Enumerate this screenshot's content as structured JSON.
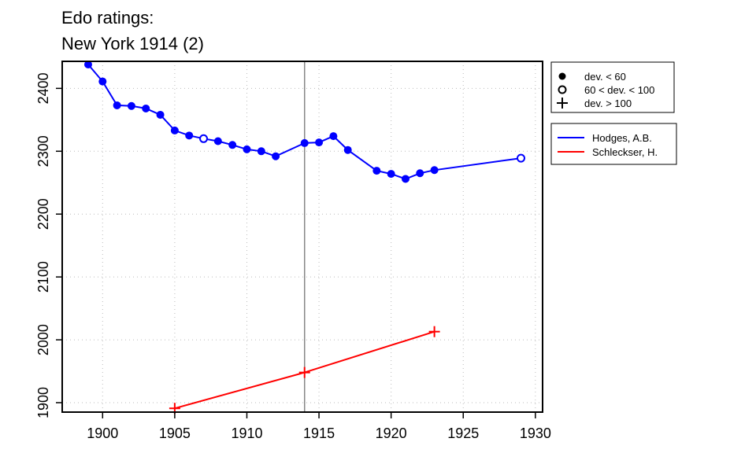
{
  "chart_data": {
    "type": "line",
    "title_lines": [
      "Edo ratings:",
      "New York 1914 (2)"
    ],
    "xlabel": "",
    "ylabel": "",
    "xlim": [
      1897.2,
      1930.5
    ],
    "ylim": [
      1885,
      2443
    ],
    "x_ticks": [
      1900,
      1905,
      1910,
      1915,
      1920,
      1925,
      1930
    ],
    "y_ticks": [
      1900,
      2000,
      2100,
      2200,
      2300,
      2400
    ],
    "grid": true,
    "event_year": 1914,
    "marker_legend": [
      {
        "marker": "filled-circle",
        "label": "dev. < 60"
      },
      {
        "marker": "open-circle",
        "label": "60 < dev. < 100"
      },
      {
        "marker": "plus",
        "label": "dev. > 100"
      }
    ],
    "series": [
      {
        "name": "Hodges, A.B.",
        "color": "#0000FF",
        "points": [
          {
            "x": 1899,
            "y": 2438,
            "marker": "filled-circle"
          },
          {
            "x": 1900,
            "y": 2411,
            "marker": "filled-circle"
          },
          {
            "x": 1901,
            "y": 2373,
            "marker": "filled-circle"
          },
          {
            "x": 1902,
            "y": 2372,
            "marker": "filled-circle"
          },
          {
            "x": 1903,
            "y": 2368,
            "marker": "filled-circle"
          },
          {
            "x": 1904,
            "y": 2358,
            "marker": "filled-circle"
          },
          {
            "x": 1905,
            "y": 2333,
            "marker": "filled-circle"
          },
          {
            "x": 1906,
            "y": 2325,
            "marker": "filled-circle"
          },
          {
            "x": 1907,
            "y": 2320,
            "marker": "open-circle"
          },
          {
            "x": 1908,
            "y": 2316,
            "marker": "filled-circle"
          },
          {
            "x": 1909,
            "y": 2310,
            "marker": "filled-circle"
          },
          {
            "x": 1910,
            "y": 2303,
            "marker": "filled-circle"
          },
          {
            "x": 1911,
            "y": 2300,
            "marker": "filled-circle"
          },
          {
            "x": 1912,
            "y": 2292,
            "marker": "filled-circle"
          },
          {
            "x": 1914,
            "y": 2313,
            "marker": "filled-circle"
          },
          {
            "x": 1915,
            "y": 2314,
            "marker": "filled-circle"
          },
          {
            "x": 1916,
            "y": 2324,
            "marker": "filled-circle"
          },
          {
            "x": 1917,
            "y": 2302,
            "marker": "filled-circle"
          },
          {
            "x": 1919,
            "y": 2269,
            "marker": "filled-circle"
          },
          {
            "x": 1920,
            "y": 2264,
            "marker": "filled-circle"
          },
          {
            "x": 1921,
            "y": 2256,
            "marker": "filled-circle"
          },
          {
            "x": 1922,
            "y": 2265,
            "marker": "filled-circle"
          },
          {
            "x": 1923,
            "y": 2270,
            "marker": "filled-circle"
          },
          {
            "x": 1929,
            "y": 2289,
            "marker": "open-circle"
          }
        ]
      },
      {
        "name": "Schleckser, H.",
        "color": "#FF0000",
        "points": [
          {
            "x": 1905,
            "y": 1891,
            "marker": "plus"
          },
          {
            "x": 1914,
            "y": 1948,
            "marker": "plus"
          },
          {
            "x": 1923,
            "y": 2013,
            "marker": "plus"
          }
        ]
      }
    ]
  }
}
